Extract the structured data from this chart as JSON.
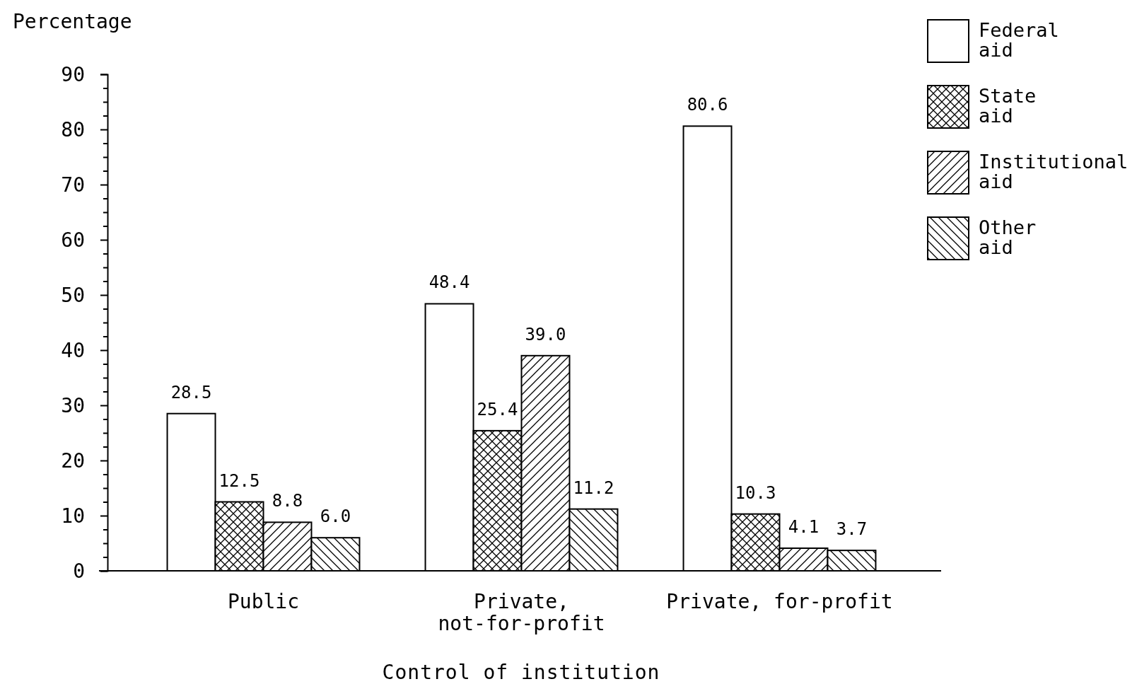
{
  "chart_data": {
    "type": "bar",
    "ylabel": "Percentage",
    "xlabel": "Control of institution",
    "categories": [
      "Public",
      "Private, not-for-profit",
      "Private, for-profit"
    ],
    "series": [
      {
        "name": "Federal aid",
        "color": "#ffffff",
        "values": [
          28.5,
          48.4,
          80.6
        ]
      },
      {
        "name": "State aid",
        "color": "#000000",
        "values": [
          12.5,
          25.4,
          10.3
        ]
      },
      {
        "name": "Institutional aid",
        "color": "#000000",
        "values": [
          8.8,
          39.0,
          4.1
        ]
      },
      {
        "name": "Other aid",
        "color": "#000000",
        "values": [
          6.0,
          11.2,
          3.7
        ]
      }
    ],
    "value_labels": [
      [
        "28.5",
        "48.4",
        "80.6"
      ],
      [
        "12.5",
        "25.4",
        "10.3"
      ],
      [
        "8.8",
        "39.0",
        "4.1"
      ],
      [
        "6.0",
        "11.2",
        "3.7"
      ]
    ],
    "ylim": [
      0,
      90
    ],
    "yticks": [
      0,
      {
        "value": 2.5,
        "label": null
      },
      {
        "value": 5,
        "label": null
      },
      {
        "value": 7.5,
        "label": null
      },
      10,
      {
        "value": 12.5,
        "label": null
      },
      {
        "value": 15,
        "label": null
      },
      {
        "value": 17.5,
        "label": null
      },
      20,
      {
        "value": 22.5,
        "label": null
      },
      {
        "value": 25,
        "label": null
      },
      {
        "value": 27.5,
        "label": null
      },
      30,
      {
        "value": 32.5,
        "label": null
      },
      {
        "value": 35,
        "label": null
      },
      {
        "value": 37.5,
        "label": null
      },
      40,
      {
        "value": 42.5,
        "label": null
      },
      {
        "value": 45,
        "label": null
      },
      {
        "value": 47.5,
        "label": null
      },
      50,
      {
        "value": 52.5,
        "label": null
      },
      {
        "value": 55,
        "label": null
      },
      {
        "value": 57.5,
        "label": null
      },
      60,
      {
        "value": 62.5,
        "label": null
      },
      {
        "value": 65,
        "label": null
      },
      {
        "value": 67.5,
        "label": null
      },
      70,
      {
        "value": 72.5,
        "label": null
      },
      {
        "value": 75,
        "label": null
      },
      {
        "value": 77.5,
        "label": null
      },
      80,
      {
        "value": 82.5,
        "label": null
      },
      {
        "value": 85,
        "label": null
      },
      {
        "value": 87.5,
        "label": null
      },
      90
    ],
    "grid": false,
    "legend": "top right"
  }
}
